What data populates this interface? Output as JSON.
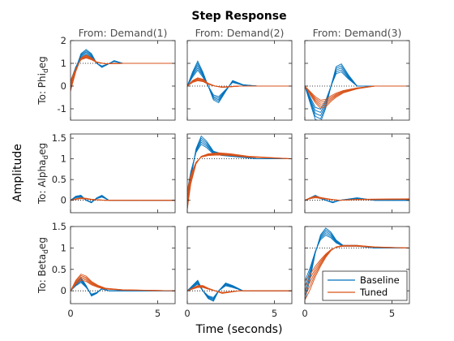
{
  "chart_data": {
    "type": "line",
    "title": "Step Response",
    "xlabel": "Time (seconds)",
    "ylabel": "Amplitude",
    "column_titles": [
      "From: Demand(1)",
      "From: Demand(2)",
      "From: Demand(3)"
    ],
    "row_titles": [
      {
        "main": "To: Phi",
        "sub": "d",
        "tail": "eg"
      },
      {
        "main": "To: Alpha",
        "sub": "d",
        "tail": "eg"
      },
      {
        "main": "To: Beta",
        "sub": "d",
        "tail": "eg"
      }
    ],
    "xlim": [
      0,
      6
    ],
    "xticks": [
      0,
      5
    ],
    "rows": [
      {
        "ylim": [
          -1.5,
          2
        ],
        "yticks": [
          -1,
          0,
          1,
          2
        ]
      },
      {
        "ylim": [
          -0.3,
          1.6
        ],
        "yticks": [
          0,
          0.5,
          1,
          1.5
        ]
      },
      {
        "ylim": [
          -0.3,
          1.5
        ],
        "yticks": [
          0,
          0.5,
          1,
          1.5
        ]
      }
    ],
    "legend_position": "bottom-right",
    "series": [
      {
        "name": "Baseline",
        "color": "#0072BD",
        "panels": [
          [
            [
              0,
              0
            ],
            [
              0.3,
              0.8
            ],
            [
              0.6,
              1.35
            ],
            [
              0.9,
              1.5
            ],
            [
              1.2,
              1.35
            ],
            [
              1.5,
              1.0
            ],
            [
              1.8,
              0.85
            ],
            [
              2.1,
              0.95
            ],
            [
              2.5,
              1.1
            ],
            [
              3,
              1.0
            ],
            [
              4,
              1.0
            ],
            [
              6,
              1.0
            ]
          ],
          [
            [
              0,
              0
            ],
            [
              0.3,
              0.5
            ],
            [
              0.6,
              0.9
            ],
            [
              0.9,
              0.5
            ],
            [
              1.2,
              0.0
            ],
            [
              1.5,
              -0.5
            ],
            [
              1.8,
              -0.6
            ],
            [
              2.2,
              -0.2
            ],
            [
              2.6,
              0.2
            ],
            [
              3.2,
              0.05
            ],
            [
              4,
              0.0
            ],
            [
              6,
              0.0
            ]
          ],
          [
            [
              0,
              0
            ],
            [
              0.3,
              -0.6
            ],
            [
              0.6,
              -1.2
            ],
            [
              0.9,
              -1.3
            ],
            [
              1.2,
              -0.8
            ],
            [
              1.5,
              0.0
            ],
            [
              1.8,
              0.7
            ],
            [
              2.1,
              0.8
            ],
            [
              2.5,
              0.4
            ],
            [
              3,
              0.0
            ],
            [
              4,
              0.0
            ],
            [
              6,
              0.0
            ]
          ],
          [
            [
              0,
              0
            ],
            [
              0.3,
              0.08
            ],
            [
              0.6,
              0.1
            ],
            [
              0.9,
              0.0
            ],
            [
              1.2,
              -0.05
            ],
            [
              1.5,
              0.05
            ],
            [
              1.8,
              0.1
            ],
            [
              2.2,
              0.0
            ],
            [
              3,
              0.0
            ],
            [
              4,
              0.0
            ],
            [
              6,
              0.0
            ]
          ],
          [
            [
              0,
              0
            ],
            [
              0.2,
              0.6
            ],
            [
              0.5,
              1.2
            ],
            [
              0.8,
              1.45
            ],
            [
              1.1,
              1.35
            ],
            [
              1.5,
              1.15
            ],
            [
              2,
              1.1
            ],
            [
              3,
              1.05
            ],
            [
              4,
              1.0
            ],
            [
              6,
              1.0
            ]
          ],
          [
            [
              0,
              0
            ],
            [
              0.3,
              0.05
            ],
            [
              0.6,
              0.1
            ],
            [
              0.9,
              0.05
            ],
            [
              1.2,
              0.0
            ],
            [
              1.6,
              -0.05
            ],
            [
              2,
              0.0
            ],
            [
              3,
              0.05
            ],
            [
              4,
              0.0
            ],
            [
              6,
              0.0
            ]
          ],
          [
            [
              0,
              0
            ],
            [
              0.3,
              0.15
            ],
            [
              0.6,
              0.25
            ],
            [
              0.9,
              0.1
            ],
            [
              1.2,
              -0.1
            ],
            [
              1.5,
              -0.05
            ],
            [
              1.8,
              0.05
            ],
            [
              2.2,
              0.0
            ],
            [
              3,
              0.0
            ],
            [
              6,
              0.0
            ]
          ],
          [
            [
              0,
              0
            ],
            [
              0.3,
              0.1
            ],
            [
              0.6,
              0.2
            ],
            [
              0.9,
              0.0
            ],
            [
              1.2,
              -0.15
            ],
            [
              1.5,
              -0.2
            ],
            [
              1.8,
              0.0
            ],
            [
              2.2,
              0.15
            ],
            [
              2.6,
              0.1
            ],
            [
              3.2,
              0.0
            ],
            [
              6,
              0.0
            ]
          ],
          [
            [
              0,
              0
            ],
            [
              0.3,
              0.4
            ],
            [
              0.6,
              0.9
            ],
            [
              0.9,
              1.25
            ],
            [
              1.2,
              1.38
            ],
            [
              1.5,
              1.3
            ],
            [
              1.8,
              1.15
            ],
            [
              2.2,
              1.05
            ],
            [
              3,
              1.05
            ],
            [
              4,
              1.0
            ],
            [
              6,
              1.0
            ]
          ]
        ]
      },
      {
        "name": "Tuned",
        "color": "#D95319",
        "panels": [
          [
            [
              0,
              0
            ],
            [
              0.3,
              0.7
            ],
            [
              0.6,
              1.2
            ],
            [
              0.9,
              1.3
            ],
            [
              1.2,
              1.2
            ],
            [
              1.5,
              1.05
            ],
            [
              2,
              0.98
            ],
            [
              3,
              1.0
            ],
            [
              4,
              1.0
            ],
            [
              6,
              1.0
            ]
          ],
          [
            [
              0,
              0
            ],
            [
              0.3,
              0.2
            ],
            [
              0.6,
              0.3
            ],
            [
              0.9,
              0.25
            ],
            [
              1.2,
              0.1
            ],
            [
              1.6,
              0.0
            ],
            [
              2,
              -0.05
            ],
            [
              3,
              0.0
            ],
            [
              6,
              0.0
            ]
          ],
          [
            [
              0,
              0
            ],
            [
              0.3,
              -0.3
            ],
            [
              0.6,
              -0.6
            ],
            [
              0.9,
              -0.8
            ],
            [
              1.2,
              -0.75
            ],
            [
              1.5,
              -0.55
            ],
            [
              1.8,
              -0.4
            ],
            [
              2.2,
              -0.25
            ],
            [
              3,
              -0.1
            ],
            [
              4,
              0.0
            ],
            [
              6,
              0.0
            ]
          ],
          [
            [
              0,
              0
            ],
            [
              0.3,
              0.03
            ],
            [
              0.6,
              0.05
            ],
            [
              0.9,
              0.04
            ],
            [
              1.2,
              0.02
            ],
            [
              2,
              0.0
            ],
            [
              3,
              0.0
            ],
            [
              6,
              0.0
            ]
          ],
          [
            [
              0,
              0
            ],
            [
              0.2,
              0.5
            ],
            [
              0.5,
              0.9
            ],
            [
              0.8,
              1.05
            ],
            [
              1.2,
              1.1
            ],
            [
              1.8,
              1.12
            ],
            [
              2.5,
              1.1
            ],
            [
              3.5,
              1.05
            ],
            [
              6,
              1.0
            ]
          ],
          [
            [
              0,
              0
            ],
            [
              0.3,
              0.05
            ],
            [
              0.6,
              0.08
            ],
            [
              1,
              0.05
            ],
            [
              1.5,
              0.02
            ],
            [
              2,
              0.0
            ],
            [
              3,
              0.02
            ],
            [
              6,
              0.03
            ]
          ],
          [
            [
              0,
              0
            ],
            [
              0.3,
              0.2
            ],
            [
              0.6,
              0.32
            ],
            [
              0.9,
              0.28
            ],
            [
              1.2,
              0.18
            ],
            [
              1.6,
              0.1
            ],
            [
              2,
              0.05
            ],
            [
              3,
              0.02
            ],
            [
              6,
              0.0
            ]
          ],
          [
            [
              0,
              0
            ],
            [
              0.3,
              0.05
            ],
            [
              0.6,
              0.1
            ],
            [
              0.9,
              0.1
            ],
            [
              1.2,
              0.05
            ],
            [
              1.6,
              0.0
            ],
            [
              2,
              -0.05
            ],
            [
              3,
              0.0
            ],
            [
              6,
              0.0
            ]
          ],
          [
            [
              0,
              0
            ],
            [
              0.3,
              0.2
            ],
            [
              0.6,
              0.45
            ],
            [
              0.9,
              0.65
            ],
            [
              1.2,
              0.82
            ],
            [
              1.5,
              0.95
            ],
            [
              1.8,
              1.02
            ],
            [
              2.2,
              1.05
            ],
            [
              3,
              1.05
            ],
            [
              4,
              1.02
            ],
            [
              6,
              1.0
            ]
          ]
        ]
      }
    ]
  }
}
